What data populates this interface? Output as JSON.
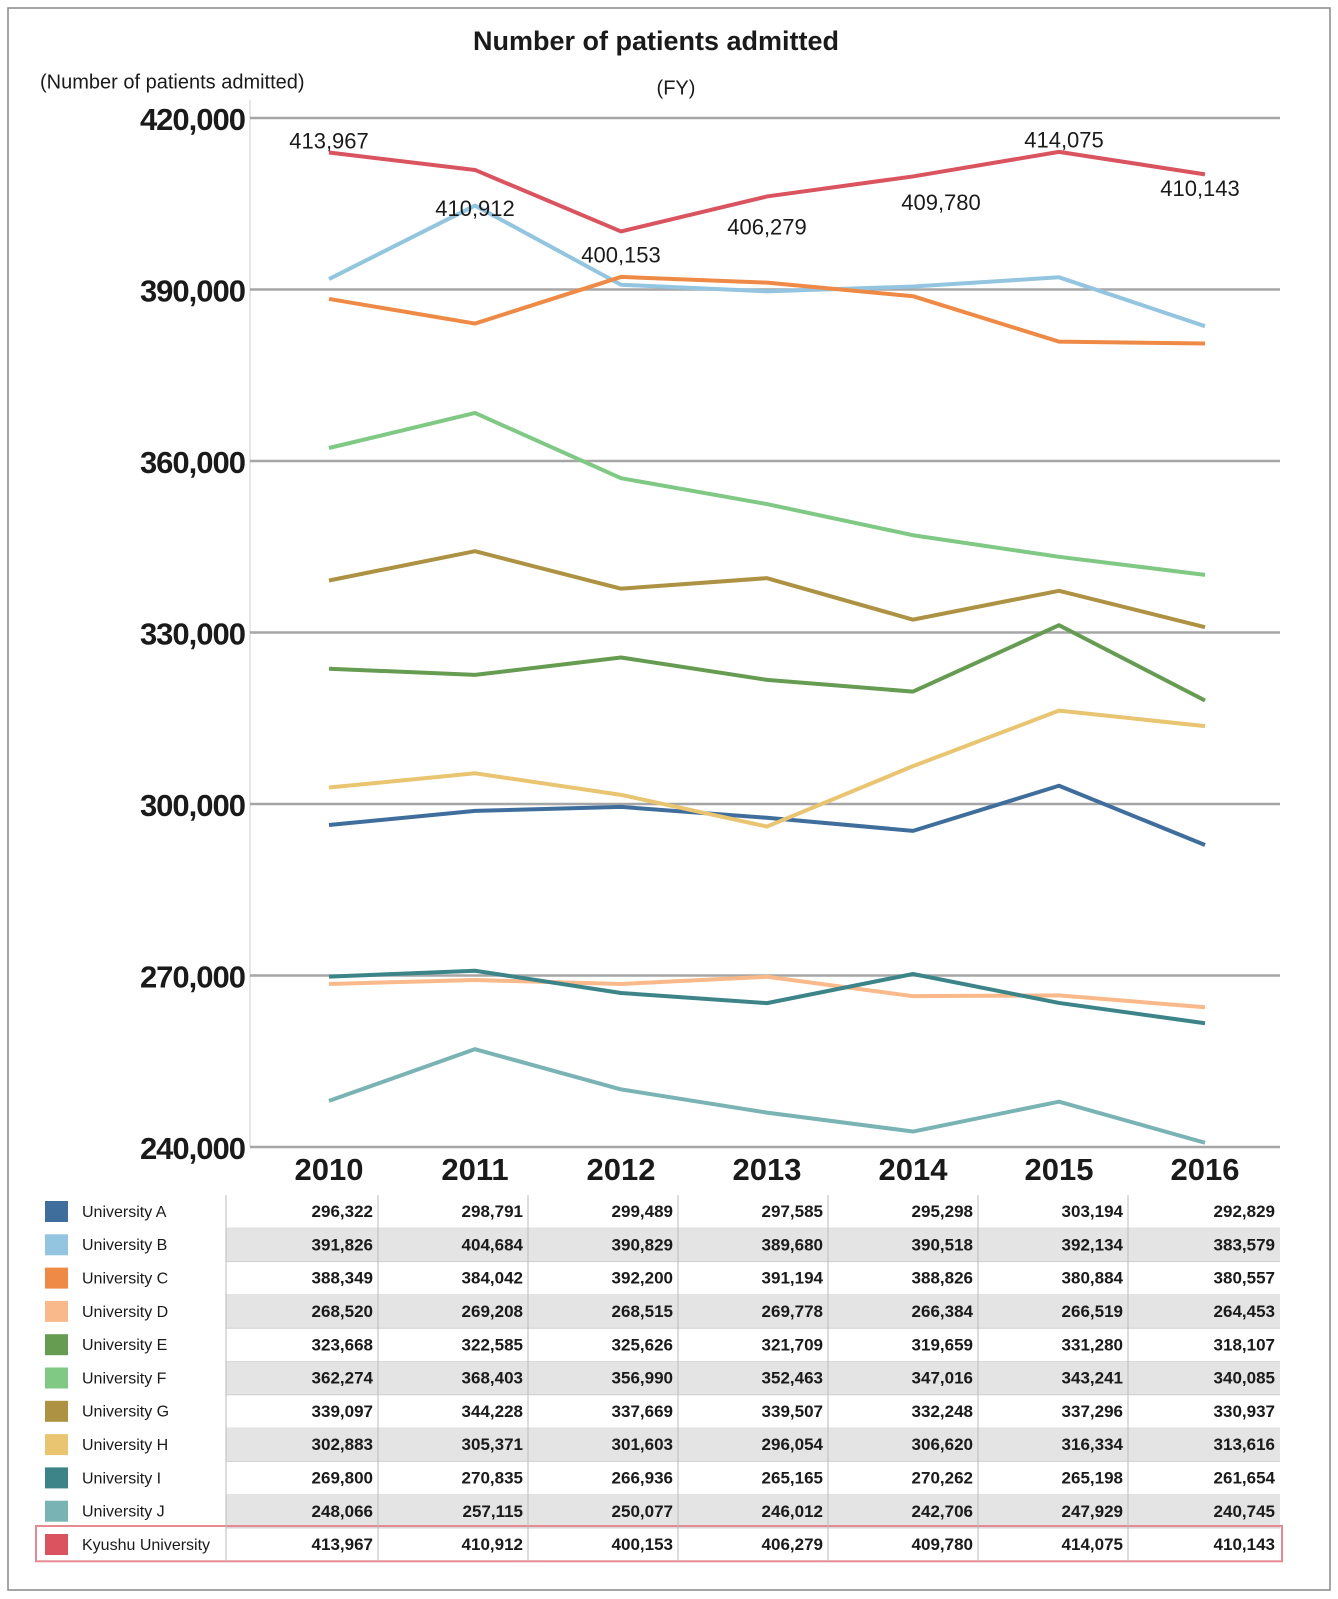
{
  "chart_data": {
    "type": "line",
    "title": "Number of patients admitted",
    "y_label": "(Number of patients admitted)",
    "x_label": "(FY)",
    "categories": [
      "2010",
      "2011",
      "2012",
      "2013",
      "2014",
      "2015",
      "2016"
    ],
    "ylim": [
      240000,
      420000
    ],
    "yticks": [
      {
        "value": 240000,
        "label": "240,000"
      },
      {
        "value": 270000,
        "label": "270,000"
      },
      {
        "value": 300000,
        "label": "300,000"
      },
      {
        "value": 330000,
        "label": "330,000"
      },
      {
        "value": 360000,
        "label": "360,000"
      },
      {
        "value": 390000,
        "label": "390,000"
      },
      {
        "value": 420000,
        "label": "420,000"
      }
    ],
    "grid": true,
    "series": [
      {
        "name": "University A",
        "color": "#3f6e9c",
        "values": [
          296322,
          298791,
          299489,
          297585,
          295298,
          303194,
          292829
        ],
        "value_labels": [
          "296,322",
          "298,791",
          "299,489",
          "297,585",
          "295,298",
          "303,194",
          "292,829"
        ]
      },
      {
        "name": "University B",
        "color": "#93c4e0",
        "values": [
          391826,
          404684,
          390829,
          389680,
          390518,
          392134,
          383579
        ],
        "value_labels": [
          "391,826",
          "404,684",
          "390,829",
          "389,680",
          "390,518",
          "392,134",
          "383,579"
        ]
      },
      {
        "name": "University C",
        "color": "#ee8a45",
        "values": [
          388349,
          384042,
          392200,
          391194,
          388826,
          380884,
          380557
        ],
        "value_labels": [
          "388,349",
          "384,042",
          "392,200",
          "391,194",
          "388,826",
          "380,884",
          "380,557"
        ]
      },
      {
        "name": "University D",
        "color": "#f9b98a",
        "values": [
          268520,
          269208,
          268515,
          269778,
          266384,
          266519,
          264453
        ],
        "value_labels": [
          "268,520",
          "269,208",
          "268,515",
          "269,778",
          "266,384",
          "266,519",
          "264,453"
        ]
      },
      {
        "name": "University E",
        "color": "#659c52",
        "values": [
          323668,
          322585,
          325626,
          321709,
          319659,
          331280,
          318107
        ],
        "value_labels": [
          "323,668",
          "322,585",
          "325,626",
          "321,709",
          "319,659",
          "331,280",
          "318,107"
        ]
      },
      {
        "name": "University F",
        "color": "#7fc985",
        "values": [
          362274,
          368403,
          356990,
          352463,
          347016,
          343241,
          340085
        ],
        "value_labels": [
          "362,274",
          "368,403",
          "356,990",
          "352,463",
          "347,016",
          "343,241",
          "340,085"
        ]
      },
      {
        "name": "University G",
        "color": "#ae9244",
        "values": [
          339097,
          344228,
          337669,
          339507,
          332248,
          337296,
          330937
        ],
        "value_labels": [
          "339,097",
          "344,228",
          "337,669",
          "339,507",
          "332,248",
          "337,296",
          "330,937"
        ]
      },
      {
        "name": "University H",
        "color": "#e9c471",
        "values": [
          302883,
          305371,
          301603,
          296054,
          306620,
          316334,
          313616
        ],
        "value_labels": [
          "302,883",
          "305,371",
          "301,603",
          "296,054",
          "306,620",
          "316,334",
          "313,616"
        ]
      },
      {
        "name": "University I",
        "color": "#3c8488",
        "values": [
          269800,
          270835,
          266936,
          265165,
          270262,
          265198,
          261654
        ],
        "value_labels": [
          "269,800",
          "270,835",
          "266,936",
          "265,165",
          "270,262",
          "265,198",
          "261,654"
        ]
      },
      {
        "name": "University J",
        "color": "#79b3b4",
        "values": [
          248066,
          257115,
          250077,
          246012,
          242706,
          247929,
          240745
        ],
        "value_labels": [
          "248,066",
          "257,115",
          "250,077",
          "246,012",
          "242,706",
          "247,929",
          "240,745"
        ]
      },
      {
        "name": "Kyushu University",
        "color": "#d9545f",
        "values": [
          413967,
          410912,
          400153,
          406279,
          409780,
          414075,
          410143
        ],
        "value_labels": [
          "413,967",
          "410,912",
          "400,153",
          "406,279",
          "409,780",
          "414,075",
          "410,143"
        ],
        "labeled": true
      }
    ]
  }
}
